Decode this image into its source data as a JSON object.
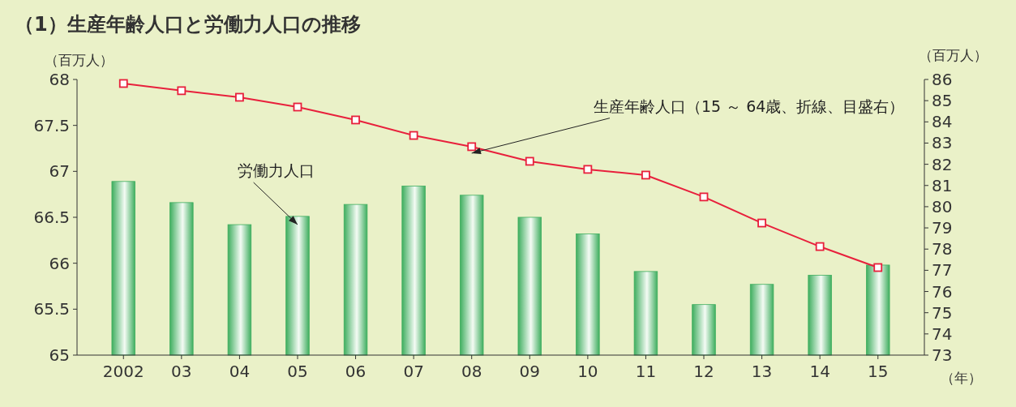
{
  "chart_data": {
    "type": "bar",
    "title": "（1）生産年齢人口と労働力人口の推移",
    "ylabel": "（百万人）",
    "y2label": "（百万人）",
    "xlabel": "（年）",
    "categories": [
      "2002",
      "03",
      "04",
      "05",
      "06",
      "07",
      "08",
      "09",
      "10",
      "11",
      "12",
      "13",
      "14",
      "15"
    ],
    "series": [
      {
        "name": "労働力人口",
        "color": "#3fae5f",
        "values": [
          66.89,
          66.66,
          66.42,
          66.51,
          66.64,
          66.84,
          66.74,
          66.5,
          66.32,
          65.91,
          65.55,
          65.77,
          65.87,
          65.98
        ]
      },
      {
        "name": "生産年齢人口（15 ～ 64歳、折線、目盛右）",
        "type": "line",
        "axis": "y2",
        "color": "#e8203c",
        "marker": "square",
        "values": [
          85.81,
          85.47,
          85.16,
          84.7,
          84.09,
          83.36,
          82.83,
          82.14,
          81.76,
          81.49,
          80.46,
          79.23,
          78.12,
          77.13
        ]
      }
    ],
    "ylim": [
      65,
      68
    ],
    "yticks": [
      65,
      {
        "value": 65.5,
        "label": "65.5"
      },
      66,
      {
        "value": 66.5,
        "label": "66.5"
      },
      67,
      {
        "value": 67.5,
        "label": "67.5"
      },
      68
    ],
    "y2lim": [
      73,
      86
    ],
    "y2ticks": [
      73,
      74,
      75,
      76,
      77,
      78,
      79,
      80,
      81,
      82,
      83,
      84,
      85,
      86
    ],
    "grid": false,
    "legend": false
  }
}
